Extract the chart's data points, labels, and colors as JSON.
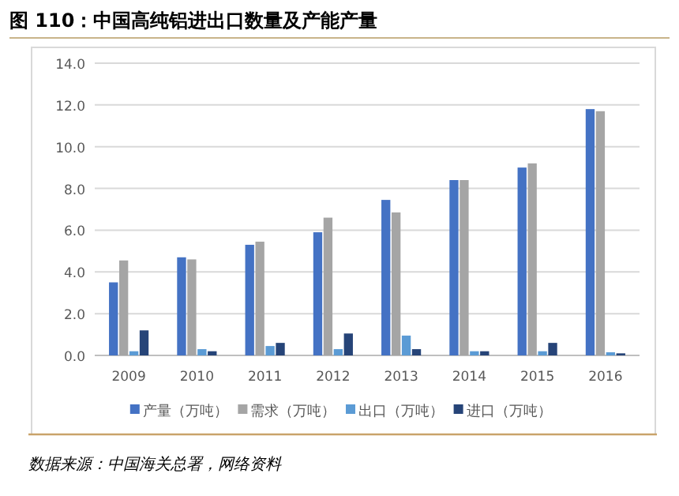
{
  "chart_data": {
    "type": "bar",
    "title": "图 110：中国高纯铝进出口数量及产能产量",
    "categories": [
      "2009",
      "2010",
      "2011",
      "2012",
      "2013",
      "2014",
      "2015",
      "2016"
    ],
    "series": [
      {
        "name": "产量（万吨）",
        "color": "#4472c4",
        "values": [
          3.5,
          4.7,
          5.3,
          5.9,
          7.45,
          8.4,
          9.0,
          11.8
        ]
      },
      {
        "name": "需求（万吨）",
        "color": "#a5a5a5",
        "values": [
          4.55,
          4.6,
          5.45,
          6.6,
          6.85,
          8.4,
          9.2,
          11.7
        ]
      },
      {
        "name": "出口（万吨）",
        "color": "#5b9bd5",
        "values": [
          0.2,
          0.3,
          0.45,
          0.3,
          0.95,
          0.2,
          0.2,
          0.15
        ]
      },
      {
        "name": "进口（万吨）",
        "color": "#264478",
        "values": [
          1.2,
          0.2,
          0.6,
          1.05,
          0.3,
          0.2,
          0.6,
          0.1
        ]
      }
    ],
    "ylim": [
      0,
      14
    ],
    "yticks": [
      {
        "value": 0,
        "label": "0.0"
      },
      {
        "value": 2,
        "label": "2.0"
      },
      {
        "value": 4,
        "label": "4.0"
      },
      {
        "value": 6,
        "label": "6.0"
      },
      {
        "value": 8,
        "label": "8.0"
      },
      {
        "value": 10,
        "label": "10.0"
      },
      {
        "value": 12,
        "label": "12.0"
      },
      {
        "value": 14,
        "label": "14.0"
      }
    ],
    "grid": "y",
    "legend": "bottom",
    "annotations": [
      "数据来源：中国海关总署，网络资料"
    ]
  }
}
